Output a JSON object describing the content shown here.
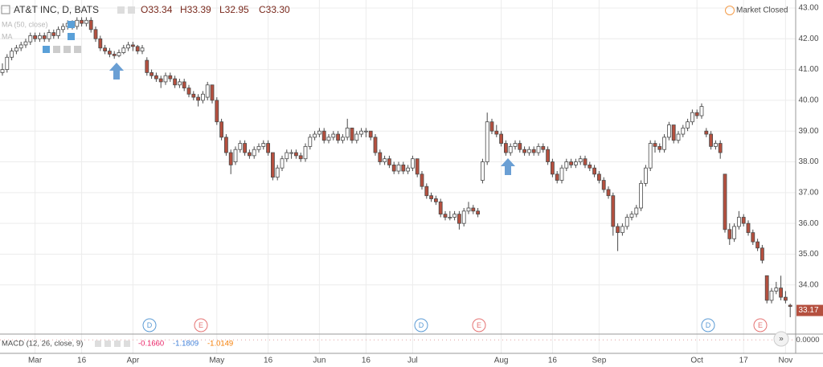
{
  "chart_data": {
    "type": "candlestick",
    "title": "AT&T INC, D, BATS",
    "ohlc_labels": [
      "O33.34",
      "H33.39",
      "L32.95",
      "C33.30"
    ],
    "status": "Market Closed",
    "indicators": [
      "MA (50, close)",
      "MA"
    ],
    "colors": {
      "up": "#ffffff",
      "down": "#b5503f",
      "outline": "#4a4a4a",
      "grid": "#ececec"
    },
    "ylim": [
      32.82,
      43.26
    ],
    "yticks": [
      {
        "value": 43,
        "label": "43.00"
      },
      {
        "value": 42,
        "label": "42.00"
      },
      {
        "value": 41,
        "label": "41.00"
      },
      {
        "value": 40,
        "label": "40.00"
      },
      {
        "value": 39,
        "label": "39.00"
      },
      {
        "value": 38,
        "label": "38.00"
      },
      {
        "value": 37,
        "label": "37.00"
      },
      {
        "value": 36,
        "label": "36.00"
      },
      {
        "value": 35,
        "label": "35.00"
      },
      {
        "value": 34,
        "label": "34.00"
      }
    ],
    "grid": true,
    "last_price": 33.17,
    "events": [
      "D",
      "E",
      "D",
      "E",
      "D",
      "E"
    ],
    "categories": [
      null,
      null,
      null,
      null,
      null,
      null,
      null,
      "Mar",
      null,
      null,
      null,
      null,
      null,
      null,
      null,
      null,
      null,
      "16",
      null,
      null,
      null,
      null,
      null,
      null,
      null,
      null,
      null,
      null,
      "Apr",
      null,
      null,
      null,
      null,
      null,
      null,
      null,
      null,
      null,
      null,
      null,
      null,
      null,
      null,
      null,
      null,
      null,
      "May",
      null,
      null,
      null,
      null,
      null,
      null,
      null,
      null,
      null,
      null,
      "16",
      null,
      null,
      null,
      null,
      null,
      null,
      null,
      null,
      null,
      null,
      "Jun",
      null,
      null,
      null,
      null,
      null,
      null,
      null,
      null,
      null,
      "16",
      null,
      null,
      null,
      null,
      null,
      null,
      null,
      null,
      null,
      "Jul",
      null,
      null,
      null,
      null,
      null,
      null,
      null,
      null,
      null,
      null,
      null,
      null,
      null,
      null,
      null,
      null,
      null,
      null,
      "Aug",
      null,
      null,
      null,
      null,
      null,
      null,
      null,
      null,
      null,
      null,
      "16",
      null,
      null,
      null,
      null,
      null,
      null,
      null,
      null,
      null,
      "Sep",
      null,
      null,
      null,
      null,
      null,
      null,
      null,
      null,
      null,
      null,
      null,
      null,
      null,
      null,
      null,
      null,
      null,
      null,
      null,
      null,
      "Oct",
      null,
      null,
      null,
      null,
      null,
      null,
      null,
      null,
      null,
      "17",
      null,
      null,
      null,
      null,
      null,
      null,
      null,
      null,
      "Nov",
      null
    ],
    "ohlc": [
      [
        40.9,
        41.2,
        40.8,
        41.0
      ],
      [
        41.0,
        41.5,
        40.9,
        41.4
      ],
      [
        41.4,
        41.7,
        41.3,
        41.6
      ],
      [
        41.6,
        41.8,
        41.5,
        41.7
      ],
      [
        41.7,
        41.9,
        41.6,
        41.8
      ],
      [
        41.8,
        42.0,
        41.7,
        41.9
      ],
      [
        41.9,
        42.2,
        41.8,
        42.1
      ],
      [
        42.1,
        42.2,
        41.9,
        42.0
      ],
      [
        42.0,
        42.2,
        41.9,
        42.1
      ],
      [
        42.1,
        42.2,
        41.9,
        42.0
      ],
      [
        42.0,
        42.3,
        41.9,
        42.2
      ],
      [
        42.2,
        42.3,
        42.0,
        42.1
      ],
      [
        42.1,
        42.4,
        42.0,
        42.3
      ],
      [
        42.3,
        42.5,
        42.2,
        42.4
      ],
      [
        42.4,
        42.6,
        42.3,
        42.5
      ],
      [
        42.5,
        42.6,
        42.3,
        42.4
      ],
      [
        42.4,
        42.7,
        42.3,
        42.6
      ],
      [
        42.6,
        42.7,
        42.4,
        42.5
      ],
      [
        42.5,
        42.7,
        42.4,
        42.6
      ],
      [
        42.6,
        42.7,
        42.2,
        42.3
      ],
      [
        42.3,
        42.4,
        41.9,
        42.0
      ],
      [
        42.0,
        42.1,
        41.6,
        41.7
      ],
      [
        41.7,
        41.8,
        41.5,
        41.6
      ],
      [
        41.6,
        41.7,
        41.4,
        41.5
      ],
      [
        41.5,
        41.6,
        41.35,
        41.45
      ],
      [
        41.45,
        41.65,
        41.4,
        41.55
      ],
      [
        41.55,
        41.8,
        41.5,
        41.7
      ],
      [
        41.7,
        41.9,
        41.6,
        41.8
      ],
      [
        41.8,
        41.9,
        41.6,
        41.75
      ],
      [
        41.75,
        41.8,
        41.5,
        41.6
      ],
      [
        41.6,
        41.8,
        41.5,
        41.7
      ],
      [
        41.3,
        41.4,
        40.8,
        40.9
      ],
      [
        40.9,
        41.0,
        40.7,
        40.8
      ],
      [
        40.8,
        40.9,
        40.6,
        40.7
      ],
      [
        40.7,
        40.8,
        40.4,
        40.6
      ],
      [
        40.6,
        40.9,
        40.5,
        40.8
      ],
      [
        40.8,
        40.9,
        40.6,
        40.7
      ],
      [
        40.7,
        40.8,
        40.4,
        40.5
      ],
      [
        40.5,
        40.7,
        40.4,
        40.6
      ],
      [
        40.6,
        40.7,
        40.3,
        40.4
      ],
      [
        40.4,
        40.5,
        40.1,
        40.2
      ],
      [
        40.2,
        40.3,
        40.0,
        40.1
      ],
      [
        40.1,
        40.2,
        39.8,
        40.0
      ],
      [
        40.0,
        40.3,
        39.9,
        40.2
      ],
      [
        40.1,
        40.6,
        40.0,
        40.5
      ],
      [
        40.5,
        40.5,
        39.9,
        40.0
      ],
      [
        40.0,
        40.1,
        39.2,
        39.3
      ],
      [
        39.3,
        39.4,
        38.7,
        38.8
      ],
      [
        38.8,
        38.9,
        38.2,
        38.3
      ],
      [
        38.3,
        38.4,
        37.6,
        37.9
      ],
      [
        38.0,
        38.5,
        37.9,
        38.4
      ],
      [
        38.4,
        38.7,
        38.3,
        38.6
      ],
      [
        38.6,
        38.7,
        38.2,
        38.3
      ],
      [
        38.3,
        38.4,
        38.1,
        38.2
      ],
      [
        38.2,
        38.5,
        38.1,
        38.4
      ],
      [
        38.4,
        38.6,
        38.3,
        38.5
      ],
      [
        38.5,
        38.7,
        38.4,
        38.6
      ],
      [
        38.6,
        38.7,
        38.2,
        38.3
      ],
      [
        38.3,
        38.3,
        37.4,
        37.5
      ],
      [
        37.5,
        37.9,
        37.4,
        37.8
      ],
      [
        37.8,
        38.2,
        37.7,
        38.1
      ],
      [
        38.1,
        38.4,
        38.0,
        38.3
      ],
      [
        38.3,
        38.4,
        38.1,
        38.3
      ],
      [
        38.3,
        38.4,
        38.1,
        38.2
      ],
      [
        38.2,
        38.3,
        38.0,
        38.1
      ],
      [
        38.1,
        38.6,
        38.0,
        38.5
      ],
      [
        38.5,
        38.9,
        38.4,
        38.8
      ],
      [
        38.8,
        39.0,
        38.7,
        38.9
      ],
      [
        38.9,
        39.1,
        38.8,
        39.0
      ],
      [
        39.0,
        39.1,
        38.6,
        38.7
      ],
      [
        38.7,
        38.9,
        38.6,
        38.8
      ],
      [
        38.8,
        39.0,
        38.7,
        38.9
      ],
      [
        38.9,
        39.0,
        38.6,
        38.7
      ],
      [
        38.7,
        38.9,
        38.6,
        38.8
      ],
      [
        38.8,
        39.4,
        38.7,
        39.1
      ],
      [
        39.1,
        39.1,
        38.6,
        38.7
      ],
      [
        38.7,
        39.0,
        38.6,
        38.9
      ],
      [
        38.9,
        39.1,
        38.8,
        39.0
      ],
      [
        39.0,
        39.1,
        38.8,
        39.0
      ],
      [
        39.0,
        39.0,
        38.7,
        38.8
      ],
      [
        38.8,
        38.9,
        38.2,
        38.3
      ],
      [
        38.3,
        38.4,
        37.9,
        38.0
      ],
      [
        38.0,
        38.2,
        37.9,
        38.1
      ],
      [
        38.1,
        38.2,
        37.8,
        37.9
      ],
      [
        37.9,
        38.0,
        37.6,
        37.7
      ],
      [
        37.7,
        38.0,
        37.6,
        37.9
      ],
      [
        37.9,
        38.0,
        37.6,
        37.7
      ],
      [
        37.7,
        37.9,
        37.6,
        37.8
      ],
      [
        37.8,
        38.2,
        37.7,
        38.1
      ],
      [
        38.1,
        38.1,
        37.5,
        37.6
      ],
      [
        37.6,
        37.7,
        37.1,
        37.2
      ],
      [
        37.2,
        37.3,
        36.8,
        36.9
      ],
      [
        36.9,
        37.0,
        36.7,
        36.8
      ],
      [
        36.8,
        36.9,
        36.6,
        36.7
      ],
      [
        36.7,
        36.8,
        36.2,
        36.3
      ],
      [
        36.3,
        36.4,
        36.1,
        36.2
      ],
      [
        36.2,
        36.4,
        36.1,
        36.2
      ],
      [
        36.2,
        36.4,
        36.1,
        36.3
      ],
      [
        36.3,
        36.4,
        35.8,
        36.0
      ],
      [
        36.0,
        36.5,
        35.9,
        36.4
      ],
      [
        36.4,
        36.7,
        36.3,
        36.5
      ],
      [
        36.5,
        36.6,
        36.3,
        36.4
      ],
      [
        36.4,
        36.5,
        36.2,
        36.3
      ],
      [
        37.4,
        38.1,
        37.3,
        38.0
      ],
      [
        38.0,
        39.6,
        37.9,
        39.3
      ],
      [
        39.3,
        39.4,
        38.9,
        39.0
      ],
      [
        39.0,
        39.2,
        38.8,
        38.9
      ],
      [
        38.9,
        39.0,
        38.5,
        38.6
      ],
      [
        38.6,
        38.7,
        38.2,
        38.3
      ],
      [
        38.3,
        38.6,
        38.2,
        38.5
      ],
      [
        38.5,
        38.7,
        38.4,
        38.6
      ],
      [
        38.6,
        38.7,
        38.3,
        38.4
      ],
      [
        38.4,
        38.5,
        38.2,
        38.3
      ],
      [
        38.3,
        38.5,
        38.2,
        38.4
      ],
      [
        38.4,
        38.5,
        38.2,
        38.3
      ],
      [
        38.3,
        38.6,
        38.2,
        38.5
      ],
      [
        38.5,
        38.6,
        38.3,
        38.4
      ],
      [
        38.4,
        38.5,
        37.9,
        38.0
      ],
      [
        38.0,
        38.1,
        37.5,
        37.6
      ],
      [
        37.6,
        37.7,
        37.3,
        37.4
      ],
      [
        37.4,
        37.9,
        37.3,
        37.8
      ],
      [
        37.8,
        38.1,
        37.7,
        38.0
      ],
      [
        38.0,
        38.1,
        37.8,
        37.9
      ],
      [
        37.9,
        38.1,
        37.8,
        38.0
      ],
      [
        38.0,
        38.2,
        37.9,
        38.1
      ],
      [
        38.1,
        38.2,
        37.8,
        37.9
      ],
      [
        37.9,
        38.0,
        37.7,
        37.8
      ],
      [
        37.8,
        37.9,
        37.5,
        37.6
      ],
      [
        37.6,
        37.7,
        37.3,
        37.4
      ],
      [
        37.4,
        37.5,
        37.0,
        37.1
      ],
      [
        37.1,
        37.2,
        36.8,
        36.9
      ],
      [
        36.9,
        37.0,
        35.6,
        35.9
      ],
      [
        35.9,
        36.0,
        35.1,
        35.7
      ],
      [
        35.7,
        36.0,
        35.6,
        35.9
      ],
      [
        35.9,
        36.3,
        35.8,
        36.2
      ],
      [
        36.2,
        36.4,
        36.1,
        36.3
      ],
      [
        36.3,
        36.6,
        36.2,
        36.5
      ],
      [
        36.5,
        37.4,
        36.4,
        37.3
      ],
      [
        37.3,
        37.9,
        37.2,
        37.8
      ],
      [
        37.8,
        38.7,
        37.7,
        38.6
      ],
      [
        38.6,
        38.7,
        38.3,
        38.5
      ],
      [
        38.5,
        38.6,
        38.3,
        38.4
      ],
      [
        38.4,
        38.9,
        38.3,
        38.8
      ],
      [
        38.8,
        39.3,
        38.7,
        39.2
      ],
      [
        39.2,
        39.2,
        38.6,
        38.7
      ],
      [
        38.7,
        39.0,
        38.6,
        38.9
      ],
      [
        38.9,
        39.2,
        38.8,
        39.1
      ],
      [
        39.1,
        39.4,
        39.0,
        39.3
      ],
      [
        39.3,
        39.7,
        39.2,
        39.6
      ],
      [
        39.6,
        39.7,
        39.4,
        39.5
      ],
      [
        39.5,
        39.9,
        39.4,
        39.8
      ],
      [
        39.0,
        39.1,
        38.8,
        38.9
      ],
      [
        38.9,
        39.0,
        38.4,
        38.5
      ],
      [
        38.5,
        38.7,
        38.4,
        38.6
      ],
      [
        38.6,
        38.7,
        38.1,
        38.3
      ],
      [
        37.6,
        37.6,
        35.7,
        35.8
      ],
      [
        35.8,
        36.0,
        35.3,
        35.5
      ],
      [
        35.5,
        36.0,
        35.4,
        35.9
      ],
      [
        35.9,
        36.4,
        35.8,
        36.2
      ],
      [
        36.2,
        36.3,
        35.9,
        36.0
      ],
      [
        36.0,
        36.1,
        35.6,
        35.7
      ],
      [
        35.7,
        35.8,
        35.3,
        35.4
      ],
      [
        35.4,
        35.5,
        35.1,
        35.2
      ],
      [
        35.2,
        35.3,
        34.7,
        34.8
      ],
      [
        34.3,
        34.3,
        33.4,
        33.5
      ],
      [
        33.5,
        33.9,
        33.4,
        33.8
      ],
      [
        33.8,
        34.1,
        33.7,
        33.9
      ],
      [
        33.9,
        34.3,
        33.5,
        33.6
      ],
      [
        33.6,
        33.8,
        33.4,
        33.5
      ],
      [
        33.34,
        33.39,
        32.95,
        33.3
      ]
    ],
    "macd": {
      "title": "MACD (12, 26, close, 9)",
      "values": [
        -0.166,
        -1.1809,
        -1.0149
      ],
      "value_labels": [
        "-0.1660",
        "-1.1809",
        "-1.0149"
      ],
      "colors": [
        "#e91e63",
        "#3f7fd8",
        "#f57c00"
      ],
      "ylim": [
        -1.6,
        0.6
      ],
      "yticks": [
        {
          "value": 0,
          "label": "0.0000"
        }
      ]
    }
  }
}
